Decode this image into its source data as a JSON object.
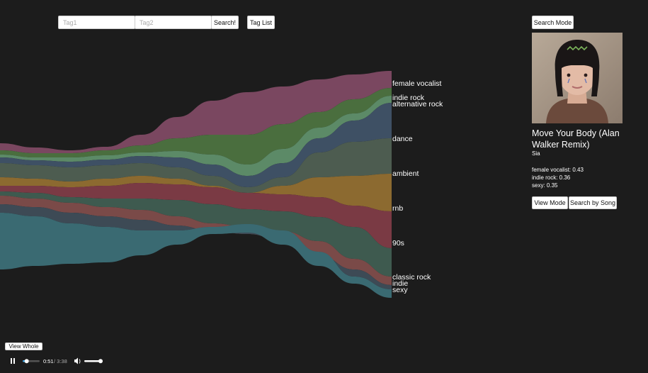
{
  "search": {
    "tag1_placeholder": "Tag1",
    "tag2_placeholder": "Tag2",
    "search_label": "Search!",
    "tag_list_label": "Tag List"
  },
  "stream_labels": [
    "female vocalist",
    "indie rock",
    "alternative rock",
    "dance",
    "ambient",
    "rnb",
    "90s",
    "classic rock",
    "indie",
    "sexy"
  ],
  "colors": {
    "female vocalist": "#7a4760",
    "indie rock": "#4a6e3e",
    "alternative rock": "#5c8a67",
    "dance": "#3e5064",
    "ambient": "#4d5c50",
    "rnb": "#8c6a30",
    "90s": "#7a3a44",
    "classic rock": "#3e5a4f",
    "indie": "#7a4a48",
    "sexy": "#3a6a72",
    "background": "#1c1c1c"
  },
  "sidebar": {
    "search_mode_label": "Search Mode",
    "song_title": "Move Your Body (Alan Walker Remix)",
    "artist": "Sia",
    "scores": [
      "female vocalist: 0.43",
      "indie rock: 0.36",
      "sexy: 0.35"
    ],
    "view_mode_label": "View Mode",
    "search_by_song_label": "Search by Song"
  },
  "view_whole_label": "View Whole",
  "player": {
    "time_current": "0:51",
    "time_total": "/ 3:38",
    "progress": 0.234,
    "volume": 1.0
  }
}
